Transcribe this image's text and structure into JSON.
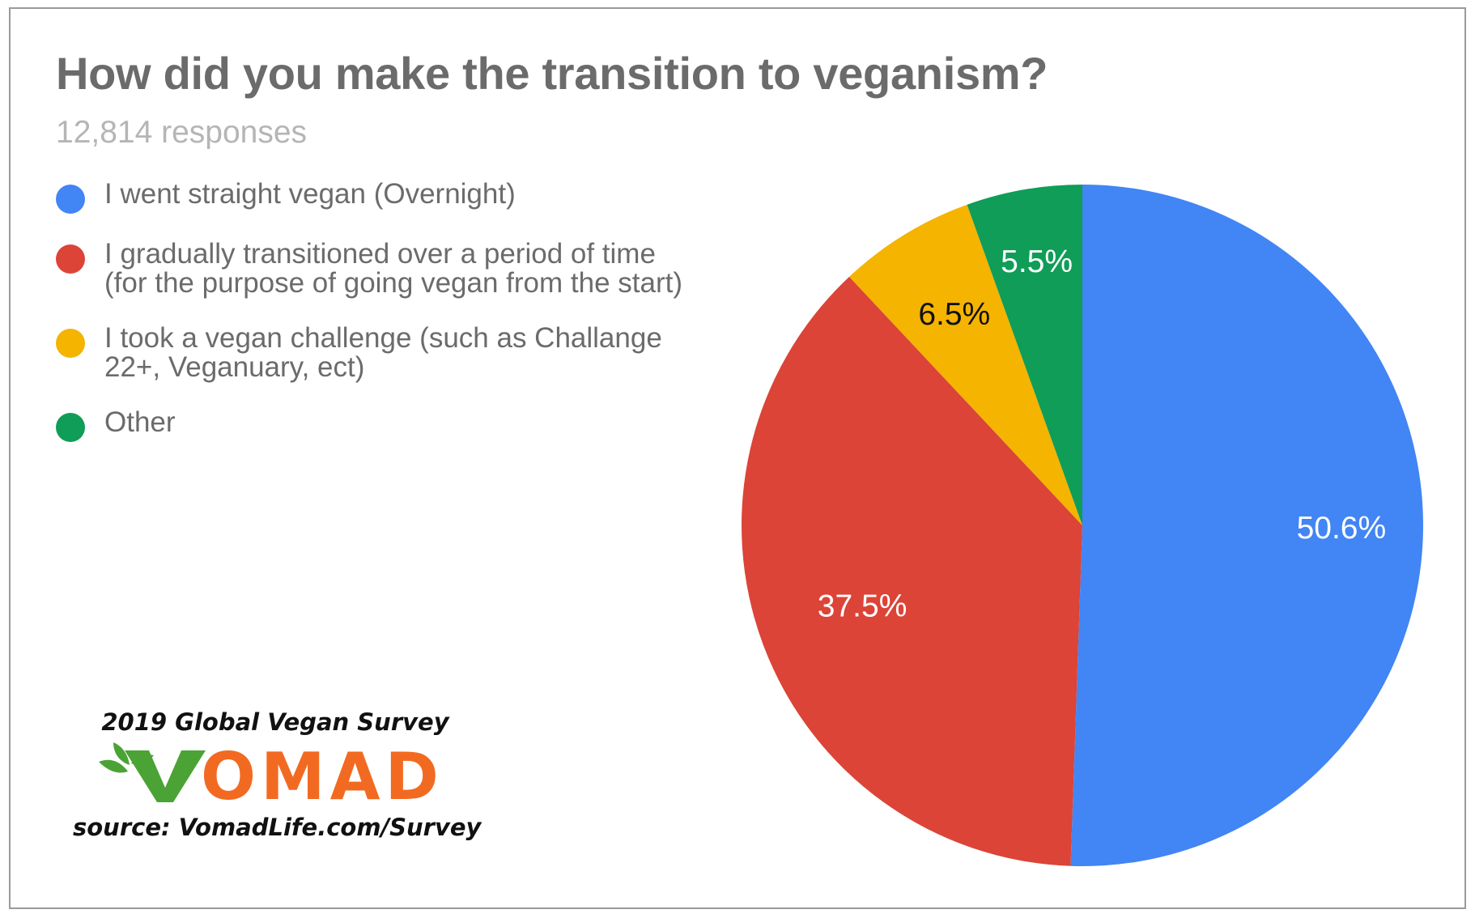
{
  "title": "How did you make the transition to veganism?",
  "subtitle": "12,814 responses",
  "colors": {
    "overnight": "#4285F4",
    "gradual": "#DB4437",
    "challenge": "#F4B400",
    "other": "#0F9D58",
    "logo_green": "#4AA334",
    "logo_orange": "#F26A21"
  },
  "chart_data": {
    "type": "pie",
    "title": "How did you make the transition to veganism?",
    "total_responses": 12814,
    "start_angle": "12 o'clock, clockwise",
    "legend_position": "left",
    "categories": [
      "I went straight vegan (Overnight)",
      "I gradually transitioned over a period of time (for the purpose of going vegan from the start)",
      "I took a vegan challenge (such as Challange 22+, Veganuary, ect)",
      "Other"
    ],
    "values": [
      50.6,
      37.5,
      6.5,
      5.5
    ],
    "labels": [
      "50.6%",
      "37.5%",
      "6.5%",
      "5.5%"
    ],
    "colors": [
      "#4285F4",
      "#DB4437",
      "#F4B400",
      "#0F9D58"
    ],
    "label_colors": [
      "#ffffff",
      "#ffffff",
      "#111111",
      "#ffffff"
    ]
  },
  "branding": {
    "survey": "2019 Global Vegan Survey",
    "logo_text": "VOMAD",
    "source": "source: VomadLife.com/Survey"
  }
}
